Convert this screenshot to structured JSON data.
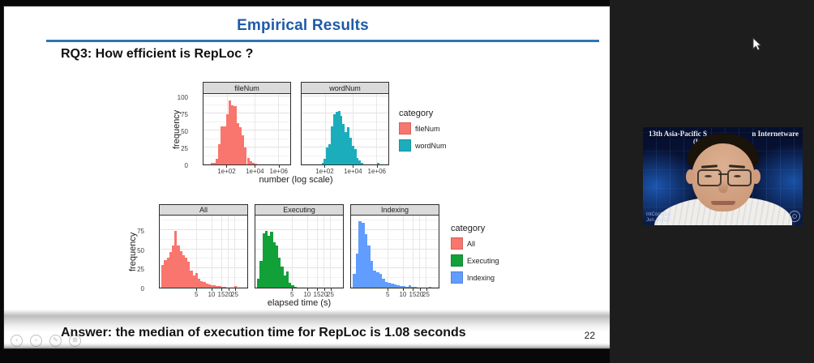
{
  "slide": {
    "title": "Empirical Results",
    "title_color": "#1E5AA8",
    "rule_color": "#2E75B6",
    "question": "RQ3: How efficient is RepLoc ?",
    "answer": "Answer: the median of execution time for RepLoc is 1.08 seconds",
    "page_number": "22"
  },
  "presenter_controls": {
    "items": [
      {
        "name": "previous-slide",
        "glyph": "‹"
      },
      {
        "name": "next-slide",
        "glyph": "›"
      },
      {
        "name": "pen-tool",
        "glyph": "✎"
      },
      {
        "name": "all-slides",
        "glyph": "⊞"
      }
    ]
  },
  "chart_data": [
    {
      "type": "bar",
      "subtype": "faceted-histogram",
      "ylabel": "frequency",
      "xlabel": "number (log scale)",
      "ylim": [
        0,
        105
      ],
      "yticks": [
        0,
        25,
        50,
        75,
        100
      ],
      "xticks": [
        {
          "label": "1e+02",
          "pct": 27
        },
        {
          "label": "1e+04",
          "pct": 59
        },
        {
          "label": "1e+06",
          "pct": 86
        }
      ],
      "grid": true,
      "facets": [
        {
          "label": "fileNum",
          "color": "#F8766D",
          "start_pct": 8,
          "end_pct": 62,
          "values": [
            2,
            3,
            8,
            30,
            57,
            57,
            75,
            95,
            88,
            87,
            62,
            55,
            43,
            25,
            10,
            5,
            2,
            1
          ]
        },
        {
          "label": "wordNum",
          "color": "#1CADBC",
          "start_pct": 23,
          "end_pct": 90,
          "values": [
            2,
            8,
            25,
            30,
            57,
            75,
            78,
            80,
            72,
            60,
            48,
            55,
            40,
            28,
            23,
            10,
            6,
            2,
            0,
            0,
            0,
            0,
            0,
            0,
            2
          ]
        }
      ],
      "legend": {
        "title": "category",
        "position": "right",
        "entries": [
          {
            "label": "fileNum",
            "color": "#F8766D"
          },
          {
            "label": "wordNum",
            "color": "#1CADBC"
          }
        ]
      }
    },
    {
      "type": "bar",
      "subtype": "faceted-histogram",
      "ylabel": "frequency",
      "xlabel": "elapsed time (s)",
      "ylim": [
        0,
        95
      ],
      "yticks": [
        0,
        25,
        50,
        75
      ],
      "xticks": [
        {
          "label": "5",
          "pct": 42
        },
        {
          "label": "10",
          "pct": 59
        },
        {
          "label": "15",
          "pct": 70
        },
        {
          "label": "20",
          "pct": 78
        },
        {
          "label": "25",
          "pct": 85
        }
      ],
      "grid": true,
      "facets": [
        {
          "label": "All",
          "color": "#F8766D",
          "start_pct": 2,
          "end_pct": 88,
          "values": [
            30,
            36,
            39,
            47,
            56,
            75,
            56,
            48,
            43,
            39,
            34,
            22,
            16,
            19,
            12,
            9,
            7,
            5,
            4,
            3,
            3,
            2,
            2,
            1,
            1,
            0,
            0,
            0,
            2
          ]
        },
        {
          "label": "Executing",
          "color": "#12A039",
          "start_pct": 2,
          "end_pct": 47,
          "values": [
            12,
            35,
            72,
            75,
            68,
            74,
            60,
            55,
            40,
            28,
            16,
            21,
            6,
            3,
            1
          ]
        },
        {
          "label": "Indexing",
          "color": "#619CFF",
          "start_pct": 2,
          "end_pct": 92,
          "values": [
            18,
            45,
            88,
            85,
            70,
            55,
            35,
            22,
            20,
            18,
            12,
            8,
            6,
            5,
            4,
            3,
            2,
            2,
            1,
            3,
            1,
            1,
            0,
            0,
            0,
            0,
            1
          ]
        }
      ],
      "legend": {
        "title": "category",
        "position": "right",
        "entries": [
          {
            "label": "All",
            "color": "#F8766D"
          },
          {
            "label": "Executing",
            "color": "#12A039"
          },
          {
            "label": "Indexing",
            "color": "#619CFF"
          }
        ]
      }
    }
  ],
  "webcam": {
    "banner_left": "13th Asia-Pacific S",
    "banner_right": "n Internetware",
    "banner_line2": "(In",
    "watermark_line1": "IntConf, 11-",
    "watermark_line2": "Jun. 11-12 -",
    "person": "presenter-with-glasses"
  }
}
